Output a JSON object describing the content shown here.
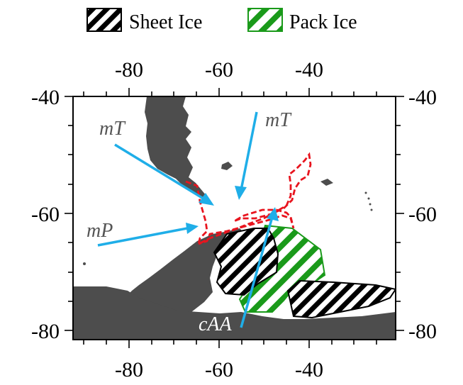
{
  "legend": {
    "items": [
      {
        "label": "Sheet Ice",
        "pattern": "black-white-hatch"
      },
      {
        "label": "Pack Ice",
        "pattern": "green-white-hatch"
      }
    ]
  },
  "axes": {
    "top_ticks": [
      "-80",
      "-60",
      "-40"
    ],
    "bottom_ticks": [
      "-80",
      "-60",
      "-40"
    ],
    "left_ticks": [
      "-40",
      "-60",
      "-80"
    ],
    "right_ticks": [
      "-40",
      "-60",
      "-80"
    ],
    "lon_range": [
      -92,
      -25
    ],
    "lat_range": [
      -80,
      -40
    ]
  },
  "air_masses": [
    {
      "label": "mT",
      "location": "upper-left"
    },
    {
      "label": "mT",
      "location": "upper-center"
    },
    {
      "label": "mP",
      "location": "left"
    },
    {
      "label": "cAA",
      "location": "bottom-center"
    }
  ],
  "colors": {
    "land": "#4d4d4d",
    "arrow": "#1faee8",
    "ship_track": "#e8141e",
    "pack_ice": "#1a9a1a",
    "sheet_ice": "#000000",
    "air_label": "#555555"
  }
}
